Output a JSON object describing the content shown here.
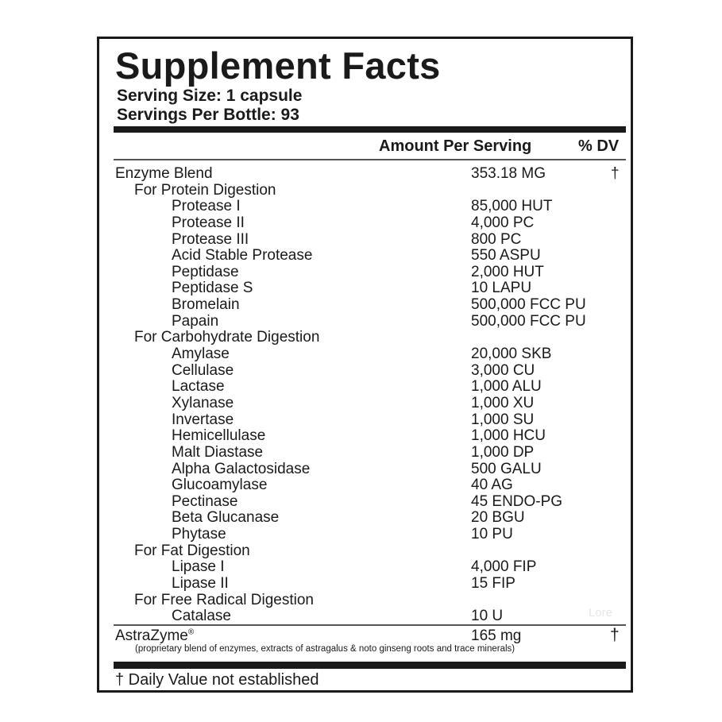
{
  "title": "Supplement Facts",
  "serving_size": "Serving Size: 1 capsule",
  "servings_per": "Servings Per Bottle: 93",
  "header": {
    "amount": "Amount Per Serving",
    "dv": "% DV"
  },
  "rows": [
    {
      "name": "Enzyme Blend",
      "amount": "353.18 MG",
      "dv": "†",
      "level": 0
    },
    {
      "name": "For Protein Digestion",
      "amount": "",
      "dv": "",
      "level": 1
    },
    {
      "name": "Protease I",
      "amount": "85,000 HUT",
      "dv": "",
      "level": 2
    },
    {
      "name": "Protease II",
      "amount": "4,000 PC",
      "dv": "",
      "level": 2
    },
    {
      "name": "Protease III",
      "amount": "800 PC",
      "dv": "",
      "level": 2
    },
    {
      "name": "Acid Stable Protease",
      "amount": "550 ASPU",
      "dv": "",
      "level": 2
    },
    {
      "name": "Peptidase",
      "amount": "2,000 HUT",
      "dv": "",
      "level": 2
    },
    {
      "name": "Peptidase S",
      "amount": "10 LAPU",
      "dv": "",
      "level": 2
    },
    {
      "name": "Bromelain",
      "amount": "500,000 FCC PU",
      "dv": "",
      "level": 2
    },
    {
      "name": "Papain",
      "amount": "500,000 FCC PU",
      "dv": "",
      "level": 2
    },
    {
      "name": "For Carbohydrate Digestion",
      "amount": "",
      "dv": "",
      "level": 1
    },
    {
      "name": "Amylase",
      "amount": "20,000 SKB",
      "dv": "",
      "level": 2
    },
    {
      "name": "Cellulase",
      "amount": "3,000 CU",
      "dv": "",
      "level": 2
    },
    {
      "name": "Lactase",
      "amount": "1,000 ALU",
      "dv": "",
      "level": 2
    },
    {
      "name": "Xylanase",
      "amount": "1,000 XU",
      "dv": "",
      "level": 2
    },
    {
      "name": "Invertase",
      "amount": "1,000 SU",
      "dv": "",
      "level": 2
    },
    {
      "name": "Hemicellulase",
      "amount": "1,000 HCU",
      "dv": "",
      "level": 2
    },
    {
      "name": "Malt Diastase",
      "amount": "1,000 DP",
      "dv": "",
      "level": 2
    },
    {
      "name": "Alpha Galactosidase",
      "amount": "500 GALU",
      "dv": "",
      "level": 2
    },
    {
      "name": "Glucoamylase",
      "amount": "40 AG",
      "dv": "",
      "level": 2
    },
    {
      "name": "Pectinase",
      "amount": "45 ENDO-PG",
      "dv": "",
      "level": 2
    },
    {
      "name": "Beta Glucanase",
      "amount": "20 BGU",
      "dv": "",
      "level": 2
    },
    {
      "name": "Phytase",
      "amount": "10 PU",
      "dv": "",
      "level": 2
    },
    {
      "name": "For Fat Digestion",
      "amount": "",
      "dv": "",
      "level": 1
    },
    {
      "name": "Lipase I",
      "amount": "4,000 FIP",
      "dv": "",
      "level": 2
    },
    {
      "name": "Lipase II",
      "amount": "15 FIP",
      "dv": "",
      "level": 2
    },
    {
      "name": "For Free Radical Digestion",
      "amount": "",
      "dv": "",
      "level": 1
    },
    {
      "name": "Catalase",
      "amount": "10 U",
      "dv": "",
      "level": 2
    }
  ],
  "watermark": "Lore",
  "astrazyme": {
    "name": "AstraZyme",
    "reg": "®",
    "amount": "165 mg",
    "dv": "†",
    "note": "(proprietary blend of enzymes, extracts of astragalus & noto ginseng roots and trace minerals)"
  },
  "footnote": "† Daily Value not established"
}
